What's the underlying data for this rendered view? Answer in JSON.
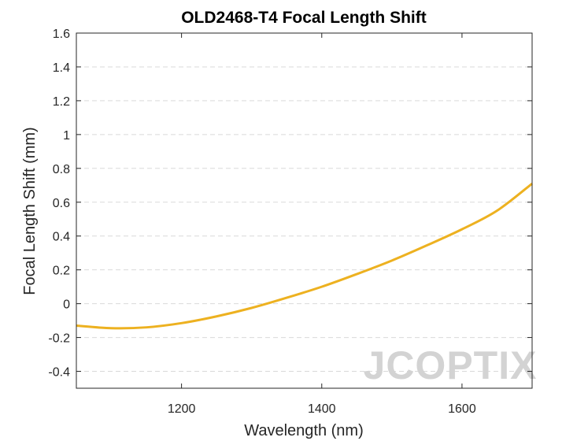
{
  "chart_data": {
    "type": "line",
    "title": "OLD2468-T4 Focal Length Shift",
    "xlabel": "Wavelength (nm)",
    "ylabel": "Focal Length Shift (mm)",
    "xlim": [
      1050,
      1700
    ],
    "ylim": [
      -0.5,
      1.6
    ],
    "xticks": [
      1200,
      1400,
      1600
    ],
    "yticks": [
      -0.4,
      -0.2,
      0,
      0.2,
      0.4,
      0.6,
      0.8,
      1,
      1.2,
      1.4,
      1.6
    ],
    "grid": "horizontal dashed",
    "series": [
      {
        "color": "#EDB120",
        "x": [
          1050,
          1100,
          1150,
          1200,
          1250,
          1300,
          1350,
          1400,
          1450,
          1500,
          1550,
          1600,
          1650,
          1700
        ],
        "y": [
          -0.13,
          -0.145,
          -0.14,
          -0.115,
          -0.075,
          -0.025,
          0.035,
          0.1,
          0.175,
          0.255,
          0.345,
          0.44,
          0.55,
          0.71
        ]
      }
    ]
  },
  "watermark": {
    "text": "JCOPTIX"
  }
}
